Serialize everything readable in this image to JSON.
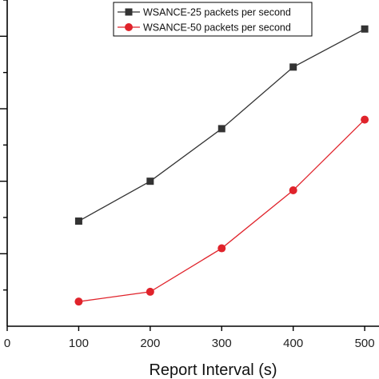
{
  "chart_data": {
    "type": "line",
    "title": "",
    "xlabel": "Report Interval (s)",
    "ylabel": "",
    "x": [
      100,
      200,
      300,
      400,
      500
    ],
    "xlim": [
      0,
      520
    ],
    "xticks": [
      "0",
      "100",
      "200",
      "300",
      "400",
      "500"
    ],
    "ylim": [
      0,
      9
    ],
    "grid": false,
    "legend_position": "top-center",
    "series": [
      {
        "name": "WSANCE-25 packets per second",
        "color": "#333333",
        "marker": "square",
        "values": [
          2.9,
          4.0,
          5.45,
          7.15,
          8.2
        ]
      },
      {
        "name": "WSANCE-50 packets per second",
        "color": "#e0232b",
        "marker": "circle",
        "values": [
          0.68,
          0.95,
          2.15,
          3.75,
          5.7
        ]
      }
    ]
  }
}
